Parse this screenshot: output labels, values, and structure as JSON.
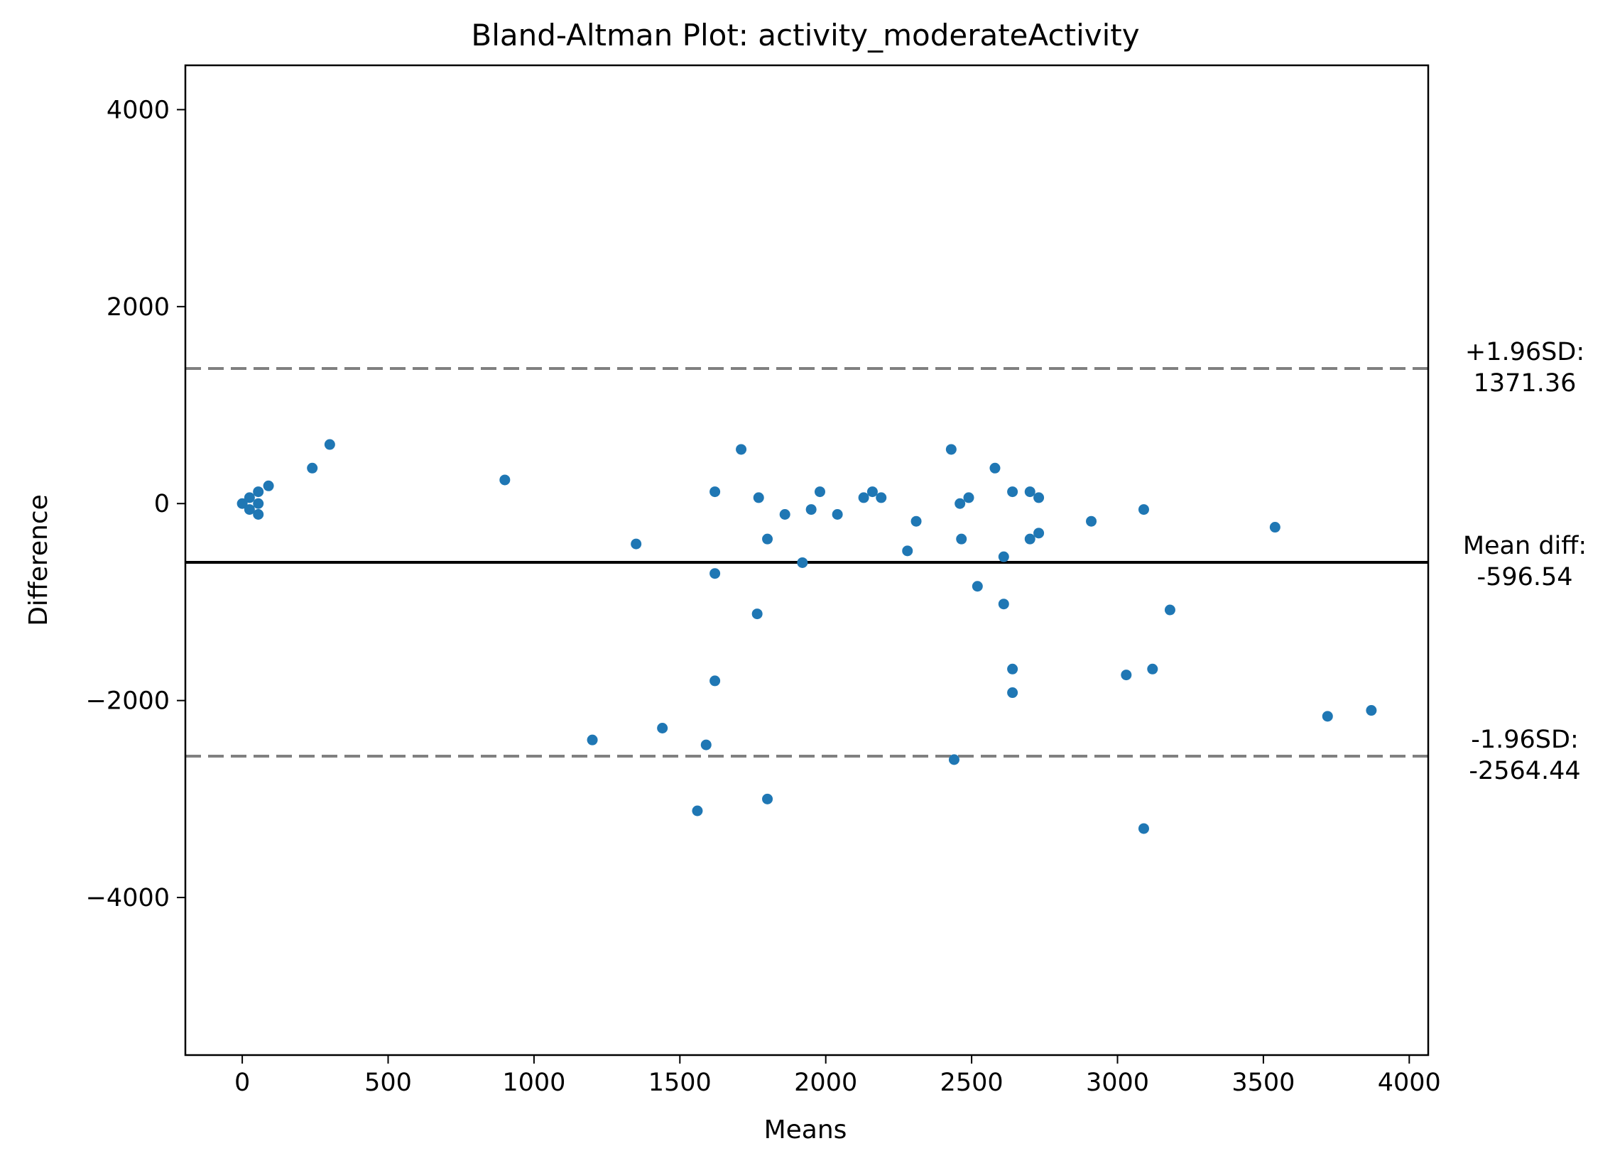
{
  "chart_data": {
    "type": "scatter",
    "title": "Bland-Altman Plot: activity_moderateActivity",
    "xlabel": "Means",
    "ylabel": "Difference",
    "xlim": [
      -195,
      4065
    ],
    "ylim": [
      -5600,
      4450
    ],
    "xticks": [
      0,
      500,
      1000,
      1500,
      2000,
      2500,
      3000,
      3500,
      4000
    ],
    "yticks": [
      -4000,
      -2000,
      0,
      2000,
      4000
    ],
    "grid": false,
    "marker_color": "#1f77b4",
    "reference_lines": [
      {
        "name": "upper",
        "value": 1371.36,
        "style": "dashed",
        "color": "#808080",
        "label_line1": "+1.96SD:",
        "label_line2": "1371.36"
      },
      {
        "name": "mean",
        "value": -596.54,
        "style": "solid",
        "color": "#000000",
        "label_line1": "Mean diff:",
        "label_line2": "-596.54"
      },
      {
        "name": "lower",
        "value": -2564.44,
        "style": "dashed",
        "color": "#808080",
        "label_line1": "-1.96SD:",
        "label_line2": "-2564.44"
      }
    ],
    "points": [
      {
        "x": 0,
        "y": 0
      },
      {
        "x": 25,
        "y": 60
      },
      {
        "x": 25,
        "y": -60
      },
      {
        "x": 55,
        "y": 120
      },
      {
        "x": 55,
        "y": 0
      },
      {
        "x": 55,
        "y": -110
      },
      {
        "x": 90,
        "y": 180
      },
      {
        "x": 240,
        "y": 360
      },
      {
        "x": 300,
        "y": 600
      },
      {
        "x": 900,
        "y": 240
      },
      {
        "x": 1200,
        "y": -2400
      },
      {
        "x": 1350,
        "y": -410
      },
      {
        "x": 1440,
        "y": -2280
      },
      {
        "x": 1560,
        "y": -3120
      },
      {
        "x": 1590,
        "y": -2450
      },
      {
        "x": 1620,
        "y": 120
      },
      {
        "x": 1620,
        "y": -710
      },
      {
        "x": 1620,
        "y": -1800
      },
      {
        "x": 1710,
        "y": 550
      },
      {
        "x": 1765,
        "y": -1120
      },
      {
        "x": 1770,
        "y": 60
      },
      {
        "x": 1800,
        "y": -360
      },
      {
        "x": 1800,
        "y": -3000
      },
      {
        "x": 1860,
        "y": -110
      },
      {
        "x": 1920,
        "y": -600
      },
      {
        "x": 1950,
        "y": -60
      },
      {
        "x": 1980,
        "y": 120
      },
      {
        "x": 2040,
        "y": -110
      },
      {
        "x": 2130,
        "y": 60
      },
      {
        "x": 2160,
        "y": 120
      },
      {
        "x": 2190,
        "y": 60
      },
      {
        "x": 2280,
        "y": -480
      },
      {
        "x": 2310,
        "y": -180
      },
      {
        "x": 2430,
        "y": 550
      },
      {
        "x": 2440,
        "y": -2600
      },
      {
        "x": 2460,
        "y": 0
      },
      {
        "x": 2465,
        "y": -360
      },
      {
        "x": 2490,
        "y": 60
      },
      {
        "x": 2520,
        "y": -840
      },
      {
        "x": 2580,
        "y": 360
      },
      {
        "x": 2610,
        "y": -540
      },
      {
        "x": 2610,
        "y": -1020
      },
      {
        "x": 2640,
        "y": 120
      },
      {
        "x": 2640,
        "y": -1680
      },
      {
        "x": 2640,
        "y": -1920
      },
      {
        "x": 2700,
        "y": 120
      },
      {
        "x": 2700,
        "y": -360
      },
      {
        "x": 2730,
        "y": 60
      },
      {
        "x": 2730,
        "y": -300
      },
      {
        "x": 2910,
        "y": -180
      },
      {
        "x": 3030,
        "y": -1740
      },
      {
        "x": 3090,
        "y": -60
      },
      {
        "x": 3090,
        "y": -3300
      },
      {
        "x": 3120,
        "y": -1680
      },
      {
        "x": 3180,
        "y": -1080
      },
      {
        "x": 3540,
        "y": -240
      },
      {
        "x": 3720,
        "y": -2160
      },
      {
        "x": 3870,
        "y": -2100
      }
    ]
  }
}
